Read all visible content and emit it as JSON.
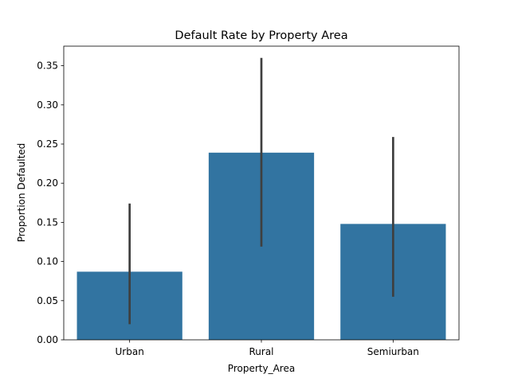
{
  "chart_data": {
    "type": "bar",
    "title": "Default Rate by Property Area",
    "xlabel": "Property_Area",
    "ylabel": "Proportion Defaulted",
    "categories": [
      "Urban",
      "Rural",
      "Semiurban"
    ],
    "values": [
      0.087,
      0.239,
      0.148
    ],
    "error_bars": [
      {
        "low": 0.02,
        "high": 0.174
      },
      {
        "low": 0.119,
        "high": 0.36
      },
      {
        "low": 0.055,
        "high": 0.259
      }
    ],
    "ylim": [
      0,
      0.375
    ],
    "yticks": [
      0.0,
      0.05,
      0.1,
      0.15,
      0.2,
      0.25,
      0.3,
      0.35
    ],
    "ytick_labels": [
      "0.00",
      "0.05",
      "0.10",
      "0.15",
      "0.20",
      "0.25",
      "0.30",
      "0.35"
    ],
    "grid": false,
    "colors": {
      "bar": "#3274a1",
      "error": "#3f3f3f"
    }
  }
}
